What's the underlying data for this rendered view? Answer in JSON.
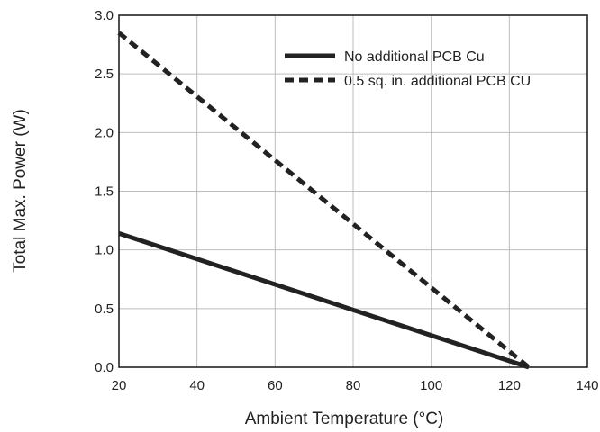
{
  "chart_data": {
    "type": "line",
    "title": "",
    "xlabel": "Ambient Temperature (°C)",
    "ylabel": "Total Max. Power (W)",
    "xlim": [
      20,
      140
    ],
    "ylim": [
      0.0,
      3.0
    ],
    "x_ticks": [
      20,
      40,
      60,
      80,
      100,
      120,
      140
    ],
    "y_ticks": [
      0.0,
      0.5,
      1.0,
      1.5,
      2.0,
      2.5,
      3.0
    ],
    "x_tick_labels": [
      "20",
      "40",
      "60",
      "80",
      "100",
      "120",
      "140"
    ],
    "y_tick_labels": [
      "0.0",
      "0.5",
      "1.0",
      "1.5",
      "2.0",
      "2.5",
      "3.0"
    ],
    "grid": true,
    "legend_position": "top-right",
    "series": [
      {
        "name": "No additional PCB Cu",
        "style": "solid",
        "color": "#222222",
        "x": [
          20,
          125
        ],
        "y": [
          1.14,
          0.0
        ]
      },
      {
        "name": "0.5 sq. in. additional PCB CU",
        "style": "dashed",
        "color": "#222222",
        "x": [
          20,
          125
        ],
        "y": [
          2.85,
          0.0
        ]
      }
    ]
  }
}
